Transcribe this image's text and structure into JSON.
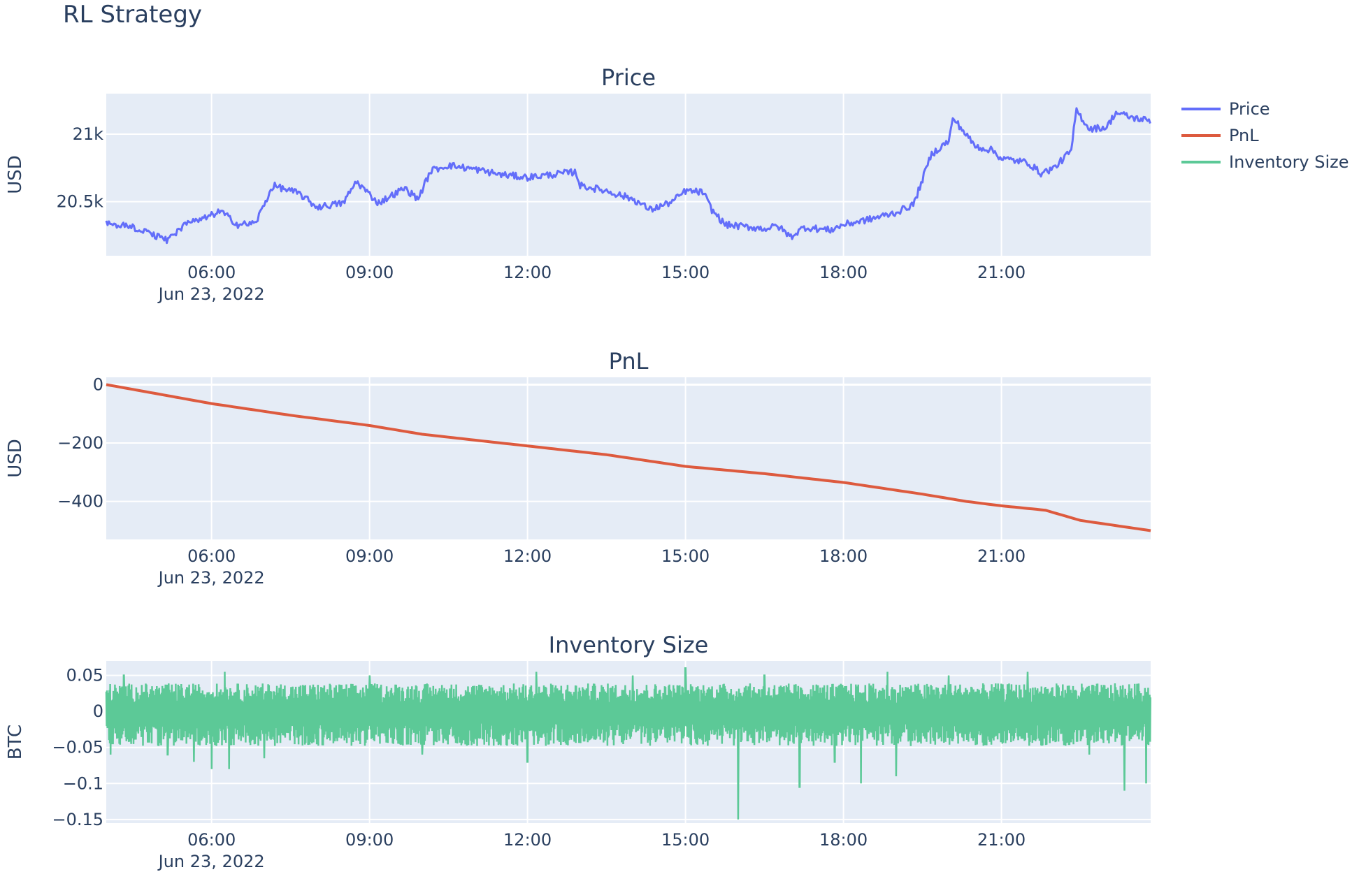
{
  "figure": {
    "title": "RL Strategy",
    "legend": [
      {
        "name": "Price",
        "color": "#636efa"
      },
      {
        "name": "PnL",
        "color": "#dd5a3e"
      },
      {
        "name": "Inventory Size",
        "color": "#5cc997"
      }
    ]
  },
  "chart_data": [
    {
      "type": "line",
      "title": "Price",
      "ylabel": "USD",
      "xlabel": "",
      "series": [
        {
          "name": "Price",
          "color": "#636efa"
        }
      ],
      "xlim": [
        "2022-06-23 04:00",
        "2022-06-23 23:50"
      ],
      "ylim": [
        20100,
        21300
      ],
      "yticks": [
        20500,
        21000
      ],
      "ytick_labels": [
        "20.5k",
        "21k"
      ],
      "xticks": [
        "06:00",
        "09:00",
        "12:00",
        "15:00",
        "18:00",
        "21:00"
      ],
      "xtick_sublabel": "Jun 23, 2022",
      "grid": true,
      "anchors": [
        [
          "04:00",
          20340
        ],
        [
          "04:30",
          20310
        ],
        [
          "05:00",
          20240
        ],
        [
          "05:10",
          20210
        ],
        [
          "05:30",
          20330
        ],
        [
          "05:50",
          20370
        ],
        [
          "06:10",
          20430
        ],
        [
          "06:30",
          20330
        ],
        [
          "06:50",
          20340
        ],
        [
          "07:00",
          20480
        ],
        [
          "07:10",
          20620
        ],
        [
          "07:40",
          20560
        ],
        [
          "08:00",
          20460
        ],
        [
          "08:30",
          20490
        ],
        [
          "08:45",
          20650
        ],
        [
          "09:10",
          20490
        ],
        [
          "09:40",
          20600
        ],
        [
          "09:55",
          20520
        ],
        [
          "10:10",
          20730
        ],
        [
          "10:30",
          20770
        ],
        [
          "11:00",
          20740
        ],
        [
          "11:30",
          20700
        ],
        [
          "12:00",
          20680
        ],
        [
          "12:40",
          20710
        ],
        [
          "12:55",
          20720
        ],
        [
          "13:00",
          20620
        ],
        [
          "13:30",
          20580
        ],
        [
          "14:00",
          20520
        ],
        [
          "14:20",
          20440
        ],
        [
          "14:45",
          20500
        ],
        [
          "15:00",
          20580
        ],
        [
          "15:20",
          20570
        ],
        [
          "15:30",
          20440
        ],
        [
          "15:45",
          20330
        ],
        [
          "16:30",
          20300
        ],
        [
          "16:45",
          20320
        ],
        [
          "17:00",
          20240
        ],
        [
          "17:15",
          20310
        ],
        [
          "17:45",
          20290
        ],
        [
          "18:00",
          20330
        ],
        [
          "18:30",
          20370
        ],
        [
          "19:00",
          20420
        ],
        [
          "19:20",
          20480
        ],
        [
          "19:40",
          20850
        ],
        [
          "20:00",
          20950
        ],
        [
          "20:05",
          21120
        ],
        [
          "20:30",
          20910
        ],
        [
          "20:50",
          20880
        ],
        [
          "21:00",
          20820
        ],
        [
          "21:30",
          20790
        ],
        [
          "21:45",
          20710
        ],
        [
          "22:00",
          20750
        ],
        [
          "22:20",
          20880
        ],
        [
          "22:25",
          21180
        ],
        [
          "22:40",
          21040
        ],
        [
          "23:00",
          21050
        ],
        [
          "23:10",
          21160
        ],
        [
          "23:30",
          21120
        ],
        [
          "23:50",
          21100
        ]
      ]
    },
    {
      "type": "line",
      "title": "PnL",
      "ylabel": "USD",
      "xlabel": "",
      "series": [
        {
          "name": "PnL",
          "color": "#dd5a3e"
        }
      ],
      "xlim": [
        "2022-06-23 04:00",
        "2022-06-23 23:50"
      ],
      "ylim": [
        -530,
        25
      ],
      "yticks": [
        0,
        -200,
        -400
      ],
      "ytick_labels": [
        "0",
        "−200",
        "−400"
      ],
      "xticks": [
        "06:00",
        "09:00",
        "12:00",
        "15:00",
        "18:00",
        "21:00"
      ],
      "xtick_sublabel": "Jun 23, 2022",
      "grid": true,
      "anchors": [
        [
          "04:00",
          0
        ],
        [
          "06:00",
          -65
        ],
        [
          "07:30",
          -105
        ],
        [
          "09:00",
          -140
        ],
        [
          "10:00",
          -170
        ],
        [
          "10:30",
          -180
        ],
        [
          "12:00",
          -210
        ],
        [
          "13:30",
          -240
        ],
        [
          "15:00",
          -280
        ],
        [
          "16:30",
          -305
        ],
        [
          "18:00",
          -335
        ],
        [
          "19:30",
          -375
        ],
        [
          "20:20",
          -400
        ],
        [
          "21:00",
          -415
        ],
        [
          "21:50",
          -430
        ],
        [
          "22:30",
          -465
        ],
        [
          "23:50",
          -500
        ]
      ]
    },
    {
      "type": "line",
      "title": "Inventory Size",
      "ylabel": "BTC",
      "xlabel": "",
      "series": [
        {
          "name": "Inventory Size",
          "color": "#5cc997"
        }
      ],
      "xlim": [
        "2022-06-23 04:00",
        "2022-06-23 23:50"
      ],
      "ylim": [
        -0.155,
        0.07
      ],
      "yticks": [
        0.05,
        0,
        -0.05,
        -0.1,
        -0.15
      ],
      "ytick_labels": [
        "0.05",
        "0",
        "−0.05",
        "−0.1",
        "−0.15"
      ],
      "xticks": [
        "06:00",
        "09:00",
        "12:00",
        "15:00",
        "18:00",
        "21:00"
      ],
      "xtick_sublabel": "Jun 23, 2022",
      "grid": true,
      "band": {
        "upper": 0.03,
        "lower": -0.04
      },
      "spikes": [
        [
          "04:05",
          -0.06
        ],
        [
          "04:20",
          0.05
        ],
        [
          "05:10",
          -0.06
        ],
        [
          "05:40",
          -0.07
        ],
        [
          "06:00",
          -0.08
        ],
        [
          "06:15",
          0.055
        ],
        [
          "06:20",
          -0.08
        ],
        [
          "07:00",
          -0.065
        ],
        [
          "09:00",
          0.05
        ],
        [
          "10:00",
          -0.06
        ],
        [
          "12:00",
          -0.07
        ],
        [
          "12:10",
          0.055
        ],
        [
          "14:00",
          0.05
        ],
        [
          "15:00",
          0.06
        ],
        [
          "16:00",
          -0.15
        ],
        [
          "16:30",
          0.05
        ],
        [
          "17:10",
          -0.105
        ],
        [
          "17:50",
          -0.07
        ],
        [
          "18:20",
          -0.1
        ],
        [
          "18:50",
          0.055
        ],
        [
          "19:00",
          -0.09
        ],
        [
          "20:00",
          0.05
        ],
        [
          "21:30",
          0.055
        ],
        [
          "22:40",
          -0.06
        ],
        [
          "23:20",
          -0.11
        ],
        [
          "23:45",
          -0.1
        ]
      ]
    }
  ]
}
